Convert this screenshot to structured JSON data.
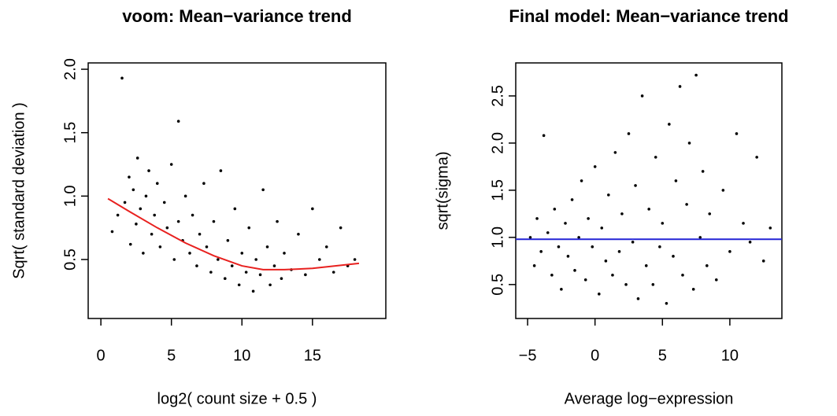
{
  "chart_data": [
    {
      "type": "scatter",
      "title": "voom: Mean−variance trend",
      "xlabel": "log2( count size + 0.5 )",
      "ylabel": "Sqrt( standard deviation )",
      "xlim": [
        -0.9,
        20.2
      ],
      "ylim": [
        0.035,
        2.05
      ],
      "xticks": [
        0,
        5,
        10,
        15
      ],
      "yticks": [
        0.5,
        {
          "value": 1,
          "label": "1.0"
        },
        1.5,
        {
          "value": 2,
          "label": "2.0"
        }
      ],
      "color": "#000000",
      "x": [
        0.8,
        1.2,
        1.5,
        1.7,
        2.0,
        2.1,
        2.3,
        2.5,
        2.6,
        2.8,
        3.0,
        3.2,
        3.4,
        3.6,
        3.8,
        4.0,
        4.2,
        4.5,
        4.7,
        5.0,
        5.2,
        5.5,
        5.5,
        5.8,
        6.0,
        6.3,
        6.5,
        6.8,
        7.0,
        7.3,
        7.5,
        7.8,
        8.0,
        8.3,
        8.5,
        8.8,
        9.0,
        9.3,
        9.5,
        9.8,
        10.0,
        10.3,
        10.5,
        10.8,
        11.0,
        11.3,
        11.5,
        11.8,
        12.0,
        12.3,
        12.5,
        12.8,
        13.0,
        13.5,
        14.0,
        14.5,
        15.0,
        15.5,
        16.0,
        16.5,
        17.0,
        17.5,
        18.0
      ],
      "values": [
        0.72,
        0.85,
        1.93,
        0.95,
        1.15,
        0.62,
        1.05,
        0.78,
        1.3,
        0.9,
        0.55,
        1.0,
        1.2,
        0.7,
        0.85,
        1.1,
        0.6,
        0.95,
        0.75,
        1.25,
        0.5,
        1.59,
        0.8,
        0.65,
        1.0,
        0.55,
        0.85,
        0.45,
        0.7,
        1.1,
        0.6,
        0.4,
        0.8,
        0.5,
        1.2,
        0.35,
        0.65,
        0.45,
        0.9,
        0.3,
        0.55,
        0.4,
        0.75,
        0.25,
        0.5,
        0.38,
        1.05,
        0.6,
        0.3,
        0.45,
        0.8,
        0.35,
        0.55,
        0.42,
        0.7,
        0.38,
        0.9,
        0.5,
        0.6,
        0.4,
        0.75,
        0.45,
        0.5
      ],
      "trend": {
        "color": "#e8211f",
        "x": [
          0.5,
          2,
          4,
          6,
          8,
          10,
          11.5,
          13,
          15,
          18.3
        ],
        "values": [
          0.98,
          0.88,
          0.75,
          0.63,
          0.53,
          0.45,
          0.42,
          0.42,
          0.43,
          0.47
        ]
      }
    },
    {
      "type": "scatter",
      "title": "Final model: Mean−variance trend",
      "xlabel": "Average log−expression",
      "ylabel": "sqrt(sigma)",
      "xlim": [
        -5.88,
        13.86
      ],
      "ylim": [
        0.14,
        2.85
      ],
      "xticks": [
        {
          "value": -5,
          "label": "−5"
        },
        0,
        5,
        10
      ],
      "yticks": [
        0.5,
        {
          "value": 1,
          "label": "1.0"
        },
        1.5,
        {
          "value": 2,
          "label": "2.0"
        },
        2.5
      ],
      "color": "#000000",
      "x": [
        -4.8,
        -4.5,
        -4.3,
        -4.0,
        -3.8,
        -3.5,
        -3.2,
        -3.0,
        -2.7,
        -2.5,
        -2.2,
        -2.0,
        -1.7,
        -1.5,
        -1.2,
        -1.0,
        -0.7,
        -0.5,
        -0.2,
        0.0,
        0.3,
        0.5,
        0.8,
        1.0,
        1.3,
        1.5,
        1.8,
        2.0,
        2.3,
        2.5,
        2.8,
        3.0,
        3.2,
        3.5,
        3.8,
        4.0,
        4.3,
        4.5,
        4.8,
        5.0,
        5.3,
        5.5,
        5.8,
        6.0,
        6.3,
        6.5,
        6.8,
        7.0,
        7.3,
        7.5,
        7.8,
        8.0,
        8.3,
        8.5,
        9.0,
        9.5,
        10.0,
        10.5,
        11.0,
        11.5,
        12.0,
        12.5,
        13.0
      ],
      "values": [
        1.0,
        0.7,
        1.2,
        0.85,
        2.08,
        1.05,
        0.6,
        1.3,
        0.9,
        0.45,
        1.15,
        0.8,
        1.4,
        0.65,
        1.0,
        1.6,
        0.55,
        1.2,
        0.9,
        1.75,
        0.4,
        1.1,
        0.75,
        1.45,
        0.6,
        1.9,
        0.85,
        1.25,
        0.5,
        2.1,
        0.95,
        1.55,
        0.35,
        2.5,
        0.7,
        1.3,
        0.5,
        1.85,
        0.9,
        1.15,
        0.3,
        2.2,
        0.8,
        1.6,
        2.6,
        0.6,
        1.35,
        2.0,
        0.45,
        2.72,
        1.0,
        1.7,
        0.7,
        1.25,
        0.55,
        1.5,
        0.85,
        2.1,
        1.15,
        0.95,
        1.85,
        0.75,
        1.1
      ],
      "hline": {
        "value": 0.98,
        "color": "#2323d6"
      }
    }
  ]
}
